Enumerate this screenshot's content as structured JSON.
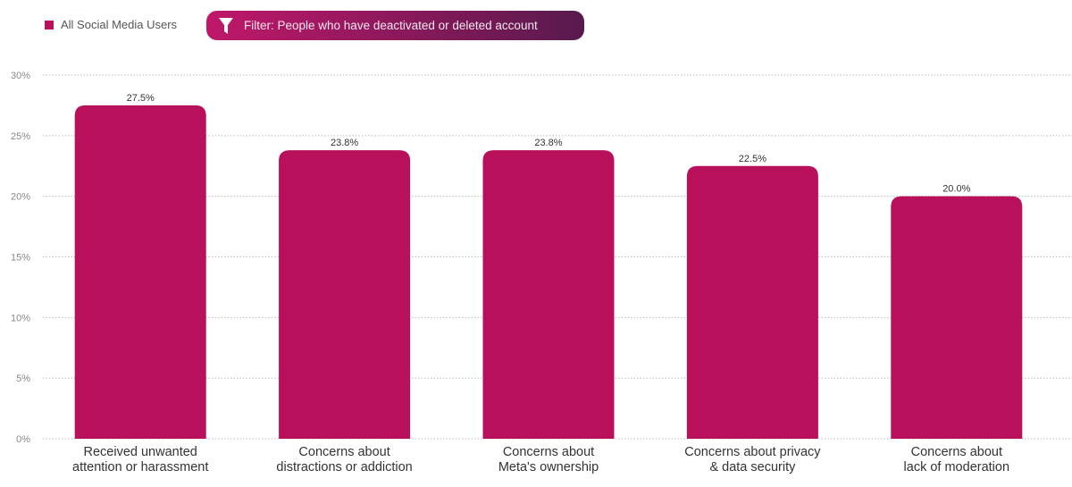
{
  "legend": {
    "label": "All Social Media Users",
    "color": "#b8105a"
  },
  "filter": {
    "label": "Filter: People who have deactivated or deleted account",
    "icon": "funnel-icon"
  },
  "chart_data": {
    "type": "bar",
    "title": "",
    "xlabel": "",
    "ylabel": "",
    "ylim": [
      0,
      30
    ],
    "yticks": [
      0,
      5,
      10,
      15,
      20,
      25,
      30
    ],
    "ytick_labels": [
      "0%",
      "5%",
      "10%",
      "15%",
      "20%",
      "25%",
      "30%"
    ],
    "grid": true,
    "legend_position": "top-left",
    "categories": [
      [
        "Received unwanted",
        "attention or harassment"
      ],
      [
        "Concerns about",
        "distractions or addiction"
      ],
      [
        "Concerns about",
        "Meta's ownership"
      ],
      [
        "Concerns about privacy",
        "& data security"
      ],
      [
        "Concerns about",
        "lack of moderation"
      ]
    ],
    "series": [
      {
        "name": "All Social Media Users",
        "values": [
          27.5,
          23.8,
          23.8,
          22.5,
          20.0
        ],
        "color": "#b8105a"
      }
    ],
    "data_labels": [
      "27.5%",
      "23.8%",
      "23.8%",
      "22.5%",
      "20.0%"
    ]
  }
}
